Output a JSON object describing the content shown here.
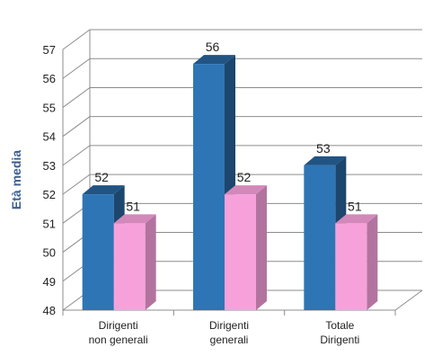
{
  "chart_data": {
    "type": "bar",
    "ylabel": "Età media",
    "ylim": [
      48,
      57
    ],
    "yticks": [
      48,
      49,
      50,
      51,
      52,
      53,
      54,
      55,
      56,
      57
    ],
    "categories": [
      [
        "Dirigenti",
        "non generali"
      ],
      [
        "Dirigenti",
        "generali"
      ],
      [
        "Totale",
        "Dirigenti"
      ]
    ],
    "series": [
      {
        "values": [
          52,
          56.5,
          53
        ],
        "data_labels": [
          "52",
          "56",
          "53"
        ],
        "color": "#2e75b6"
      },
      {
        "values": [
          51,
          52,
          51
        ],
        "data_labels": [
          "51",
          "52",
          "51"
        ],
        "color": "#f7a1db"
      }
    ],
    "grid": true,
    "legend": "none",
    "style": "3d-column"
  }
}
